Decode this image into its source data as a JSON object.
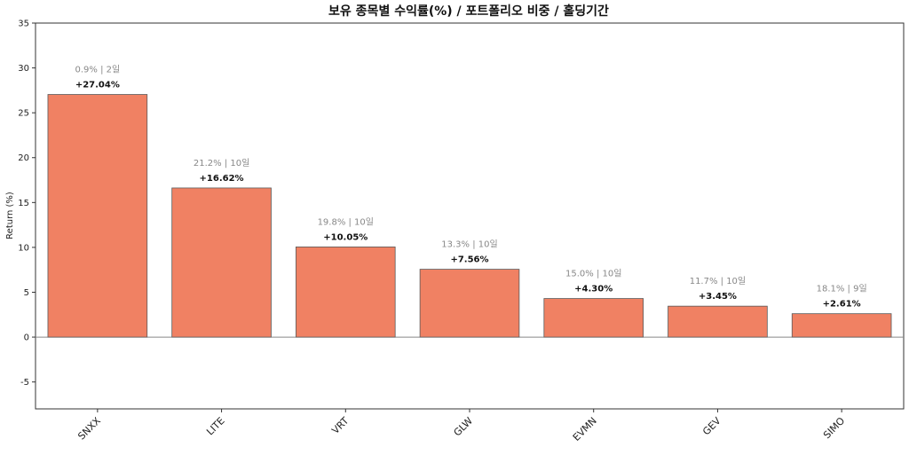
{
  "chart_data": {
    "type": "bar",
    "title": "보유 종목별 수익률(%) / 포트폴리오 비중 / 홀딩기간",
    "xlabel": "",
    "ylabel": "Return (%)",
    "ylim": [
      -8,
      35
    ],
    "yticks": [
      -5,
      0,
      5,
      10,
      15,
      20,
      25,
      30,
      35
    ],
    "grid": false,
    "categories": [
      "SNXX",
      "LITE",
      "VRT",
      "GLW",
      "EVMN",
      "GEV",
      "SIMO"
    ],
    "values": [
      27.04,
      16.62,
      10.05,
      7.56,
      4.3,
      3.45,
      2.61
    ],
    "value_labels": [
      "+27.04%",
      "+16.62%",
      "+10.05%",
      "+7.56%",
      "+4.30%",
      "+3.45%",
      "+2.61%"
    ],
    "annotations": [
      "0.9% | 2일",
      "21.2% | 10일",
      "19.8% | 10일",
      "13.3% | 10일",
      "15.0% | 10일",
      "11.7% | 10일",
      "18.1% | 9일"
    ],
    "colors": {
      "bar": "#f08163",
      "bar_edge": "#5a5a5a",
      "zero_line": "#888888",
      "axis": "#333333"
    }
  }
}
